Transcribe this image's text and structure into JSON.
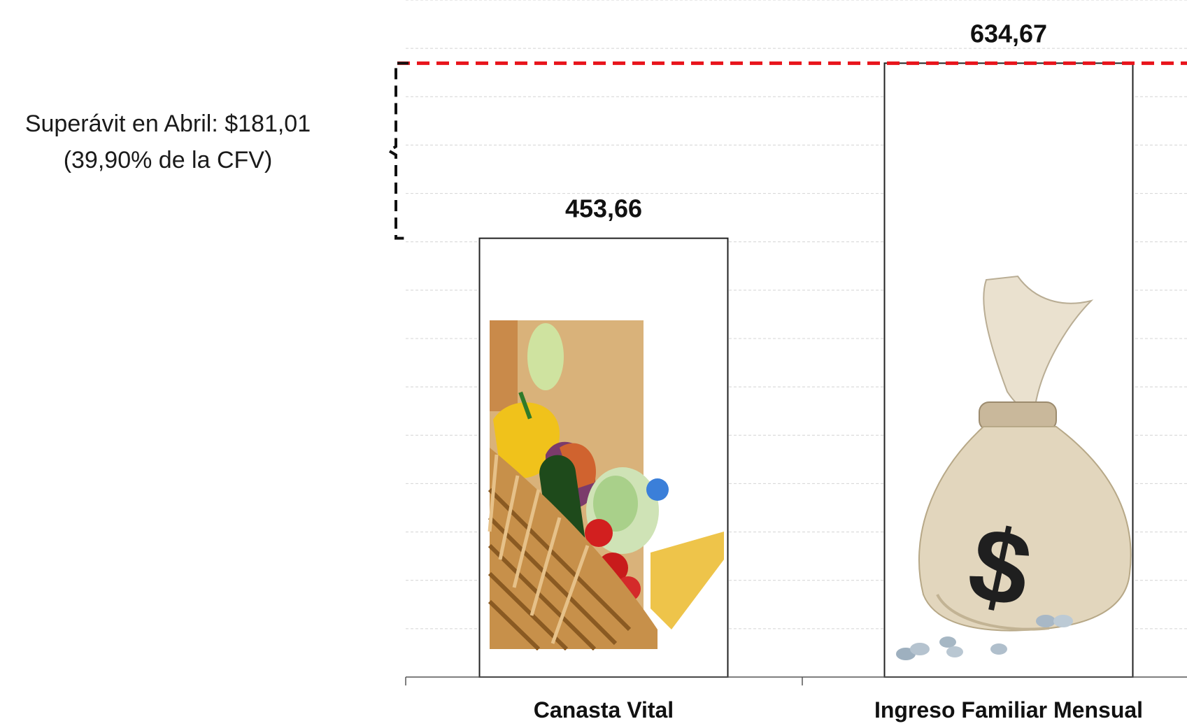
{
  "chart_data": {
    "type": "bar",
    "categories": [
      "Canasta Vital",
      "Ingreso Familiar Mensual"
    ],
    "values": [
      453.66,
      634.67
    ],
    "value_labels": [
      "453,66",
      "634,67"
    ],
    "ylim": [
      0,
      700
    ],
    "grid": true,
    "annotation": {
      "line1": "Superávit en  Abril: $181,01",
      "line2": "(39,90% de la CFV)"
    },
    "reference_line": {
      "value": 634.67,
      "color": "#e8141b"
    }
  }
}
